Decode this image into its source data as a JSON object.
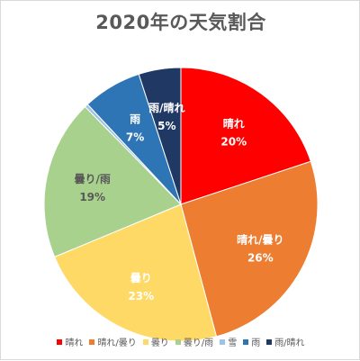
{
  "chart_data": {
    "type": "pie",
    "title": "2020年の天気割合",
    "categories": [
      "晴れ",
      "晴れ/曇り",
      "曇り",
      "曇り/雨",
      "雪",
      "雨",
      "雨/晴れ"
    ],
    "values": [
      20,
      26,
      23,
      19,
      0.4,
      7,
      5
    ],
    "labels": [
      "20%",
      "26%",
      "23%",
      "19%",
      "",
      "7%",
      "5%"
    ],
    "colors": [
      "#ff0000",
      "#ed7d31",
      "#ffd966",
      "#a9d18e",
      "#9dc3e6",
      "#2e75b6",
      "#203864"
    ],
    "label_colors": [
      "#ffffff",
      "#ffffff",
      "#ffffff",
      "#595959",
      "#ffffff",
      "#ffffff",
      "#ffffff"
    ],
    "start": "12 o'clock",
    "direction": "clockwise",
    "legend_position": "bottom"
  }
}
